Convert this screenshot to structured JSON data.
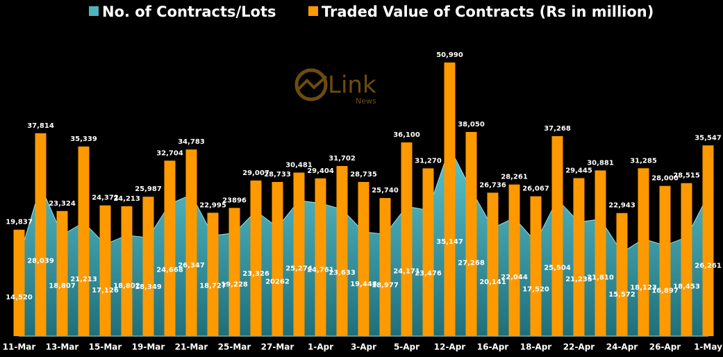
{
  "chart_data": {
    "type": "bar-area",
    "watermark": {
      "brand": "Link",
      "sub": "News"
    },
    "categories": [
      "11-Mar",
      null,
      "13-Mar",
      null,
      "15-Mar",
      null,
      "19-Mar",
      null,
      "21-Mar",
      null,
      "25-Mar",
      null,
      "27-Mar",
      null,
      "1-Apr",
      null,
      "3-Apr",
      null,
      "5-Apr",
      null,
      "12-Apr",
      null,
      "16-Apr",
      null,
      "18-Apr",
      null,
      "22-Apr",
      null,
      "24-Apr",
      null,
      "26-Apr",
      null,
      "1-May"
    ],
    "series": [
      {
        "name": "No. of Contracts/Lots",
        "color": "#4fb3bf",
        "kind": "area",
        "values": [
          14520,
          28039,
          18807,
          21213,
          17126,
          18802,
          18349,
          24668,
          26347,
          18727,
          19228,
          23326,
          20262,
          25274,
          24761,
          23633,
          19448,
          18977,
          24171,
          23476,
          35147,
          27268,
          20141,
          22044,
          17520,
          25504,
          21235,
          21810,
          15572,
          18123,
          16897,
          18453,
          26261
        ],
        "value_labels": [
          "14,520",
          "28,039",
          "18,807",
          "21,213",
          "17,126",
          "18,802",
          "18,349",
          "24,668",
          "26,347",
          "18,727",
          "19,228",
          "23,326",
          "20262",
          "25,274",
          "24,761",
          "23,633",
          "19,448",
          "18,977",
          "24,171",
          "23,476",
          "35,147",
          "27,268",
          "20,141",
          "22,044",
          "17,520",
          "25,504",
          "21,235",
          "21,810",
          "15,572",
          "18,123",
          "16,897",
          "18,453",
          "26,261"
        ]
      },
      {
        "name": "Traded Value of Contracts (Rs in million)",
        "color": "#ff9900",
        "kind": "bar",
        "values": [
          19837,
          37814,
          23324,
          35339,
          24372,
          24213,
          25987,
          32704,
          34783,
          22995,
          23896,
          29007,
          28733,
          30481,
          29404,
          31702,
          28735,
          25740,
          36100,
          31270,
          50990,
          38050,
          26736,
          28261,
          26067,
          37268,
          29445,
          30881,
          22943,
          31285,
          28000,
          28515,
          35547
        ],
        "value_labels": [
          "19,837",
          "37,814",
          "23,324",
          "35,339",
          "24,372",
          "24,213",
          "25,987",
          "32,704",
          "34,783",
          "22,995",
          "23896",
          "29,007",
          "28,733",
          "30,481",
          "29,404",
          "31,702",
          "28,735",
          "25,740",
          "36,100",
          "31,270",
          "50,990",
          "38,050",
          "26,736",
          "28,261",
          "26,067",
          "37,268",
          "29,445",
          "30,881",
          "22,943",
          "31,285",
          "28,000",
          "28,515",
          "35,547"
        ]
      }
    ]
  }
}
